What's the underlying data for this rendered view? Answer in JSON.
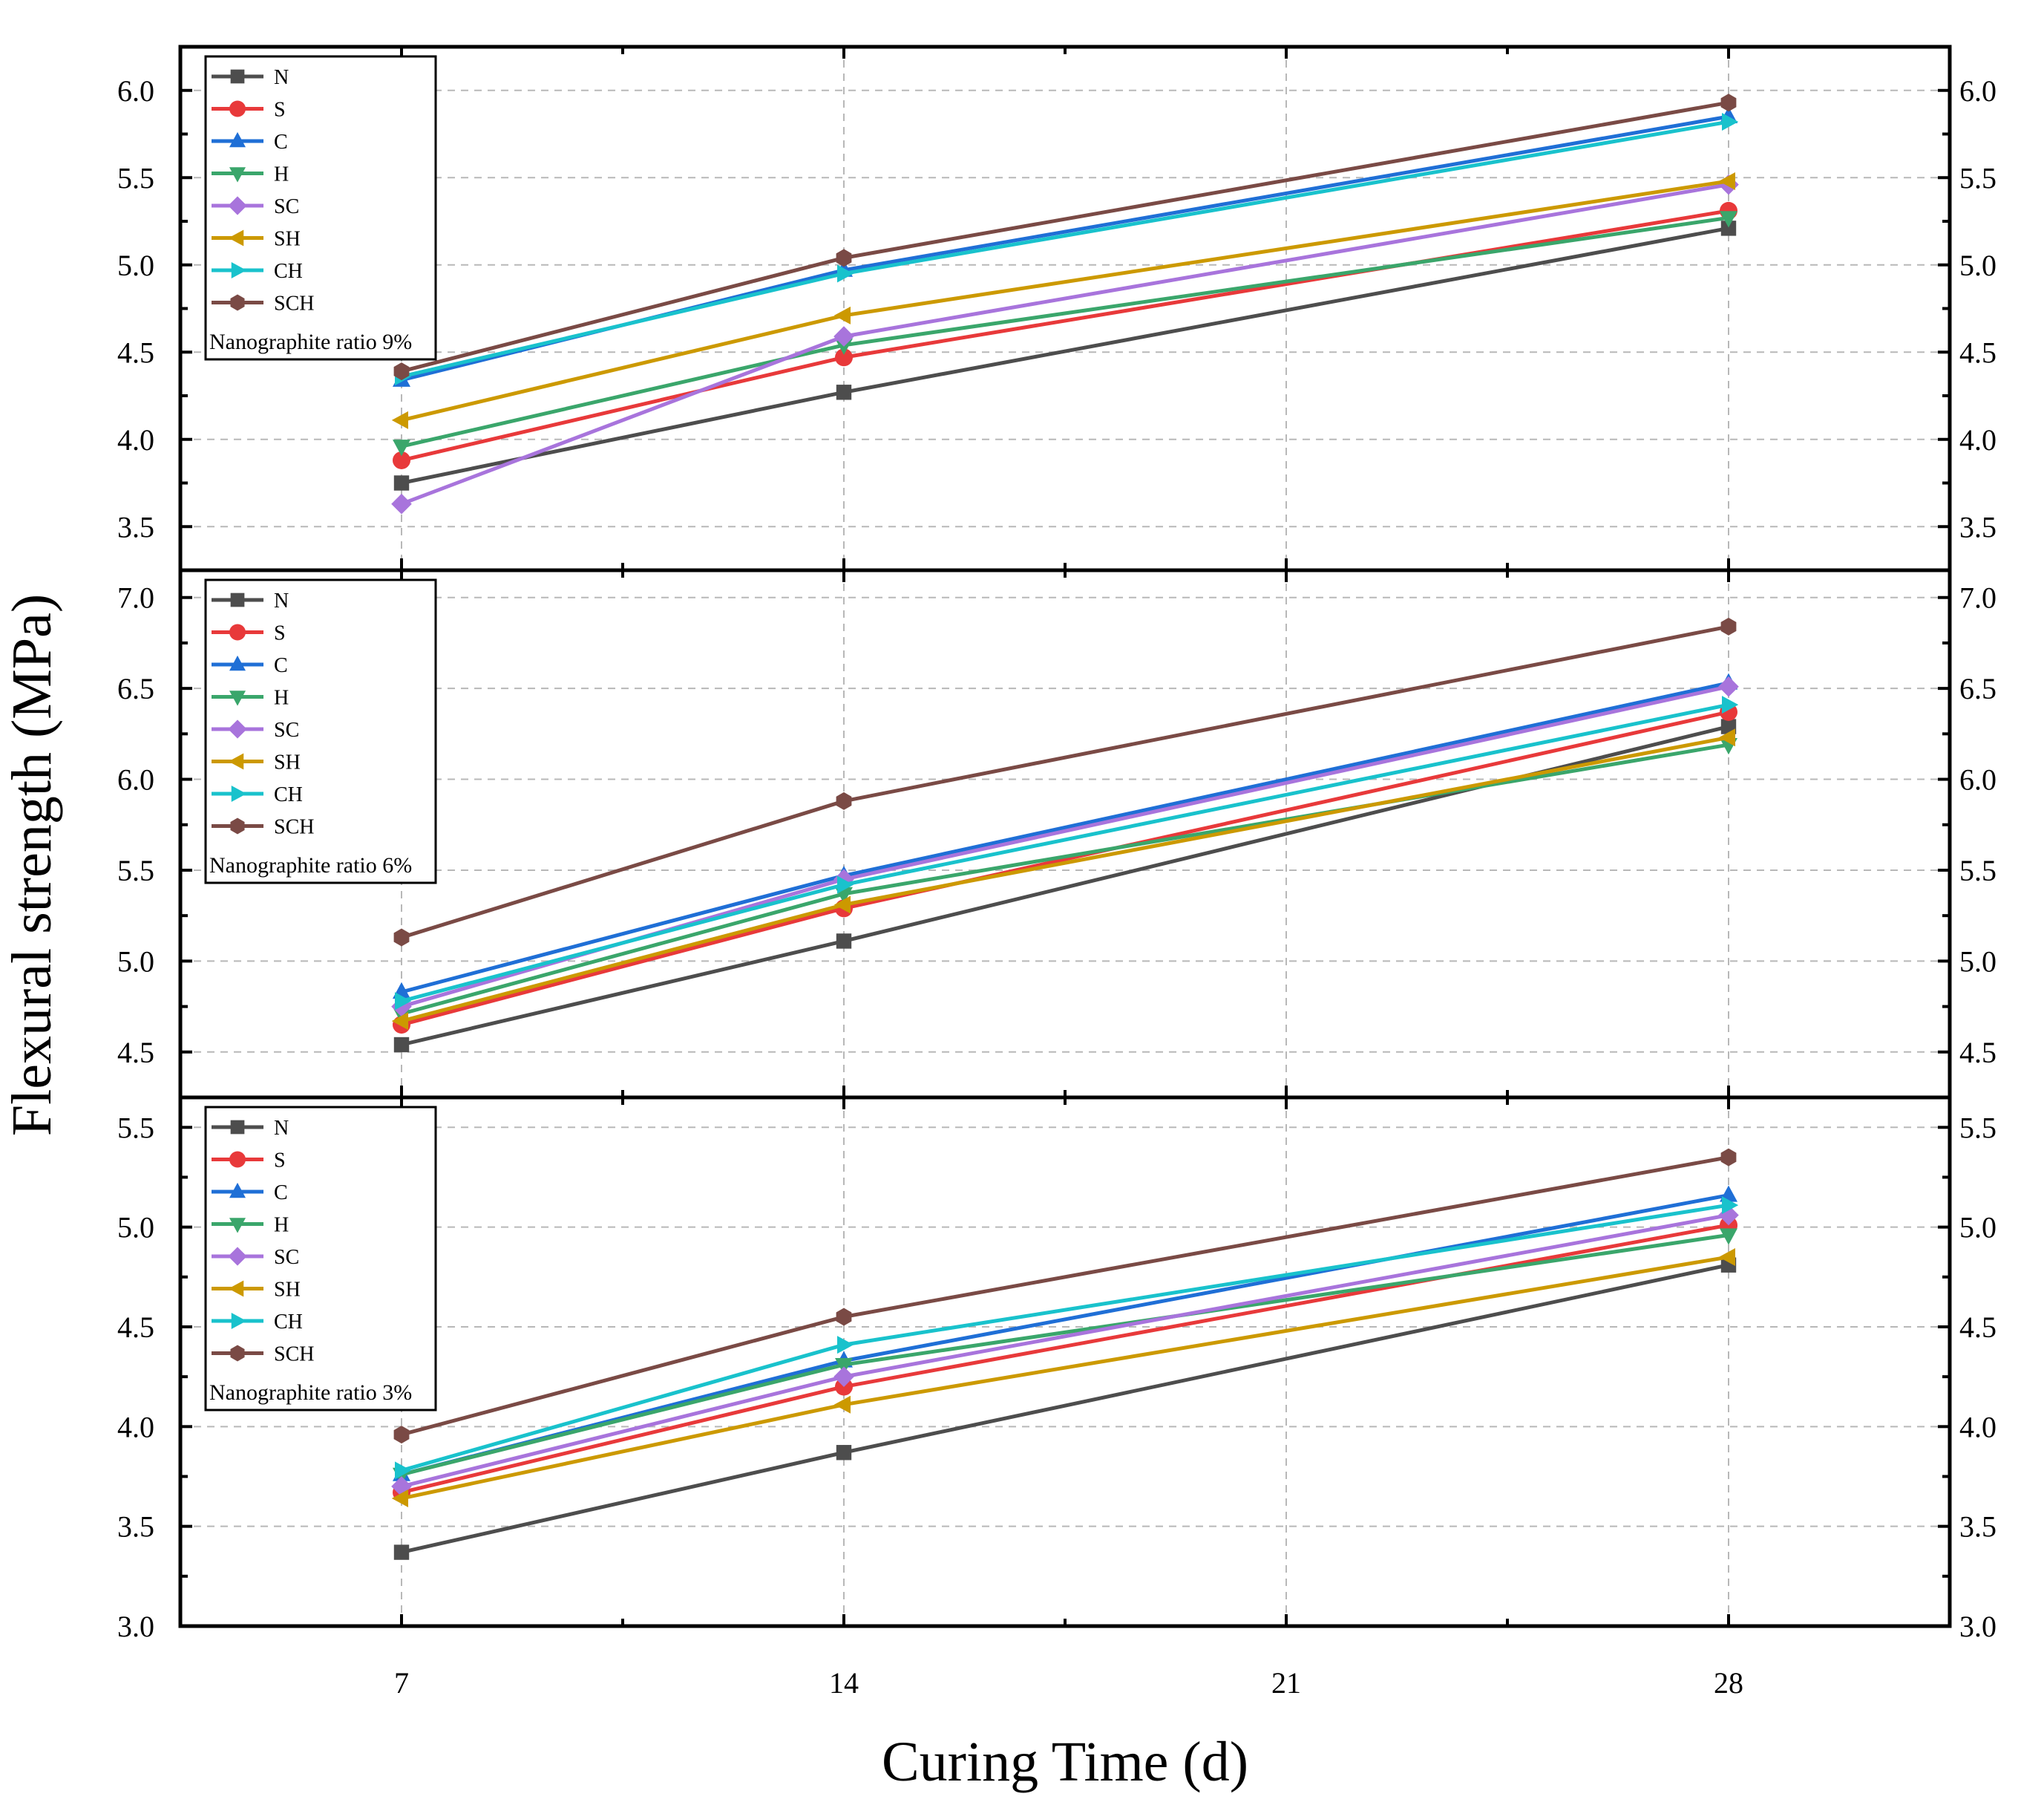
{
  "chart_data": {
    "type": "line",
    "ylabel": "Flexural strength (MPa)",
    "xlabel": "Curing Time (d)",
    "x": [
      7,
      14,
      21,
      28
    ],
    "x_ticks": [
      "7",
      "14",
      "21",
      "28"
    ],
    "xlim": [
      3.5,
      31.5
    ],
    "colors": {
      "N": "#4d4d4d",
      "S": "#e8393a",
      "C": "#1f6fd6",
      "H": "#3aa66b",
      "SC": "#a874dc",
      "SH": "#cc9900",
      "CH": "#19c2cc",
      "SCH": "#7a4a45"
    },
    "panels": [
      {
        "legend_note": "Nanographite ratio 9%",
        "ylim": [
          3.25,
          6.25
        ],
        "y_ticks": [
          "3.5",
          "4.0",
          "4.5",
          "5.0",
          "5.5",
          "6.0"
        ],
        "series": [
          {
            "name": "N",
            "marker": "square",
            "values": [
              3.75,
              4.27,
              null,
              5.21
            ]
          },
          {
            "name": "S",
            "marker": "circle",
            "values": [
              3.88,
              4.47,
              null,
              5.31
            ]
          },
          {
            "name": "C",
            "marker": "triangle-up",
            "values": [
              4.34,
              4.97,
              null,
              5.85
            ]
          },
          {
            "name": "H",
            "marker": "triangle-down",
            "values": [
              3.96,
              4.54,
              null,
              5.27
            ]
          },
          {
            "name": "SC",
            "marker": "diamond",
            "values": [
              3.63,
              4.59,
              null,
              5.46
            ]
          },
          {
            "name": "SH",
            "marker": "triangle-left",
            "values": [
              4.11,
              4.71,
              null,
              5.48
            ]
          },
          {
            "name": "CH",
            "marker": "triangle-right",
            "values": [
              4.36,
              4.95,
              null,
              5.82
            ]
          },
          {
            "name": "SCH",
            "marker": "hexagon",
            "values": [
              4.39,
              5.04,
              null,
              5.93
            ]
          }
        ]
      },
      {
        "legend_note": "Nanographite ratio 6%",
        "ylim": [
          4.25,
          7.15
        ],
        "y_ticks": [
          "4.5",
          "5.0",
          "5.5",
          "6.0",
          "6.5",
          "7.0"
        ],
        "series": [
          {
            "name": "N",
            "marker": "square",
            "values": [
              4.54,
              5.11,
              null,
              6.29
            ]
          },
          {
            "name": "S",
            "marker": "circle",
            "values": [
              4.65,
              5.29,
              null,
              6.37
            ]
          },
          {
            "name": "C",
            "marker": "triangle-up",
            "values": [
              4.83,
              5.47,
              null,
              6.53
            ]
          },
          {
            "name": "H",
            "marker": "triangle-down",
            "values": [
              4.71,
              5.37,
              null,
              6.19
            ]
          },
          {
            "name": "SC",
            "marker": "diamond",
            "values": [
              4.75,
              5.45,
              null,
              6.51
            ]
          },
          {
            "name": "SH",
            "marker": "triangle-left",
            "values": [
              4.67,
              5.31,
              null,
              6.23
            ]
          },
          {
            "name": "CH",
            "marker": "triangle-right",
            "values": [
              4.78,
              5.42,
              null,
              6.41
            ]
          },
          {
            "name": "SCH",
            "marker": "hexagon",
            "values": [
              5.13,
              5.88,
              null,
              6.84
            ]
          }
        ]
      },
      {
        "legend_note": "Nanographite ratio 3%",
        "ylim": [
          3.0,
          5.65
        ],
        "y_ticks": [
          "3.0",
          "3.5",
          "4.0",
          "4.5",
          "5.0",
          "5.5"
        ],
        "series": [
          {
            "name": "N",
            "marker": "square",
            "values": [
              3.37,
              3.87,
              null,
              4.81
            ]
          },
          {
            "name": "S",
            "marker": "circle",
            "values": [
              3.67,
              4.2,
              null,
              5.01
            ]
          },
          {
            "name": "C",
            "marker": "triangle-up",
            "values": [
              3.76,
              4.33,
              null,
              5.16
            ]
          },
          {
            "name": "H",
            "marker": "triangle-down",
            "values": [
              3.76,
              4.31,
              null,
              4.96
            ]
          },
          {
            "name": "SC",
            "marker": "diamond",
            "values": [
              3.7,
              4.25,
              null,
              5.06
            ]
          },
          {
            "name": "SH",
            "marker": "triangle-left",
            "values": [
              3.64,
              4.11,
              null,
              4.85
            ]
          },
          {
            "name": "CH",
            "marker": "triangle-right",
            "values": [
              3.78,
              4.41,
              null,
              5.11
            ]
          },
          {
            "name": "SCH",
            "marker": "hexagon",
            "values": [
              3.96,
              4.55,
              null,
              5.35
            ]
          }
        ]
      }
    ]
  }
}
